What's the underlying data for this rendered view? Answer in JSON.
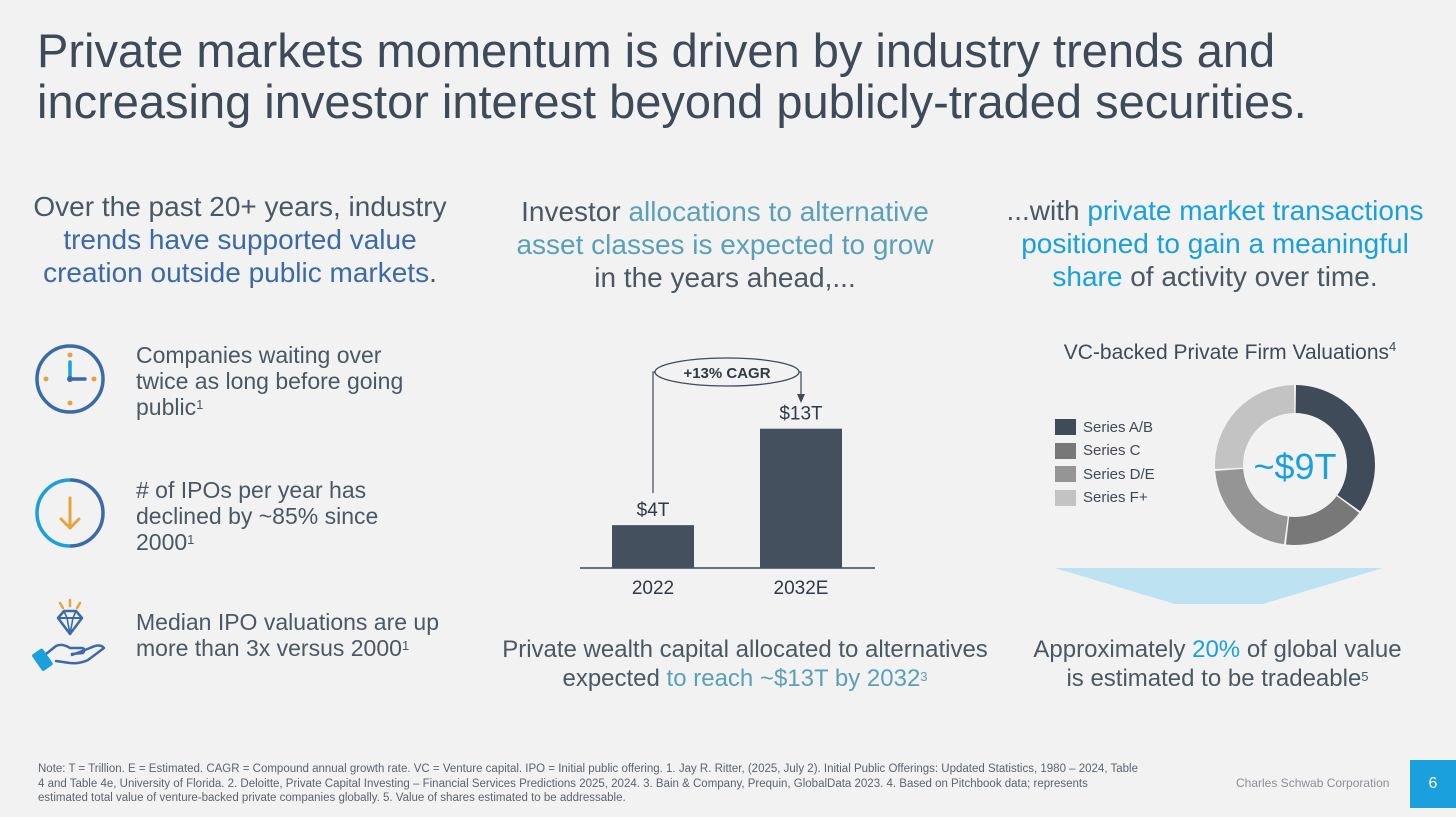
{
  "title": {
    "line1": "Private markets momentum is driven by industry trends and",
    "line2": "increasing investor interest beyond publicly-traded securities."
  },
  "left": {
    "heading": {
      "p1": "Over the past 20+ years, industry",
      "p2": "trends have supported value",
      "p3": "creation outside public markets",
      "p4": "."
    },
    "items": [
      {
        "icon": "clock-icon",
        "line1": "Companies waiting over",
        "line2": "twice as long before going",
        "line3": "public",
        "sup": "1"
      },
      {
        "icon": "down-arrow-icon",
        "line1": "# of IPOs per year has",
        "line2": "declined by ~85% since",
        "line3": "2000",
        "sup": "1"
      },
      {
        "icon": "diamond-hand-icon",
        "line1": "Median IPO valuations are up",
        "line2": "more than 3x versus 2000",
        "sup": "1"
      }
    ]
  },
  "middle": {
    "heading": {
      "p1": "Investor ",
      "p2": "allocations to alternative",
      "p3": "asset classes is expected to grow",
      "p4": "in the years ahead,..."
    },
    "caption": {
      "p1": "Private wealth capital allocated to alternatives",
      "p2": "expected ",
      "p3": "to reach ~$13T by 2032",
      "sup": "3"
    }
  },
  "right": {
    "heading": {
      "p1": "...with ",
      "p2": "private market transactions",
      "p3": "positioned to gain a meaningful",
      "p4": "share",
      "p5": " of activity over time."
    },
    "chart_title": "VC-backed Private Firm Valuations",
    "chart_title_sup": "4",
    "caption": {
      "p1": "Approximately ",
      "p2": "20%",
      "p3": " of global value",
      "p4": "is estimated to be tradeable",
      "sup": "5"
    }
  },
  "chart_data": [
    {
      "type": "bar",
      "categories": [
        "2022",
        "2032E"
      ],
      "values": [
        4,
        13
      ],
      "data_labels": [
        "$4T",
        "$13T"
      ],
      "annotation": "+13% CAGR",
      "unit": "Trillion USD",
      "ylim": [
        0,
        14
      ],
      "color": "#44505e"
    },
    {
      "type": "pie",
      "title": "VC-backed Private Firm Valuations",
      "center_label": "~$9T",
      "labels": [
        "Series A/B",
        "Series C",
        "Series D/E",
        "Series F+"
      ],
      "values": [
        35,
        17,
        22,
        26
      ],
      "colors": [
        "#3f4b59",
        "#787878",
        "#959595",
        "#c3c3c3"
      ]
    }
  ],
  "colors": {
    "accent_blue": "#1aa0dc",
    "navy": "#3b6aa6",
    "teal": "#5aa0b9",
    "bar": "#44505e",
    "arrow_band": "#bde3f3"
  },
  "footnote": {
    "line1": "Note: T = Trillion. E = Estimated. CAGR = Compound annual growth rate. VC = Venture capital. IPO = Initial public offering. 1. Jay R. Ritter, (2025, July 2). Initial Public Offerings: Updated Statistics, 1980 – 2024, Table",
    "line2": "4 and Table 4e, University of Florida.  2. Deloitte, Private Capital Investing – Financial Services Predictions 2025, 2024.  3. Bain & Company, Prequin, GlobalData 2023. 4. Based on Pitchbook data; represents",
    "line3": "estimated total value of venture-backed private companies globally. 5. Value of shares estimated to be addressable."
  },
  "brand": "Charles Schwab Corporation",
  "page_number": "6"
}
